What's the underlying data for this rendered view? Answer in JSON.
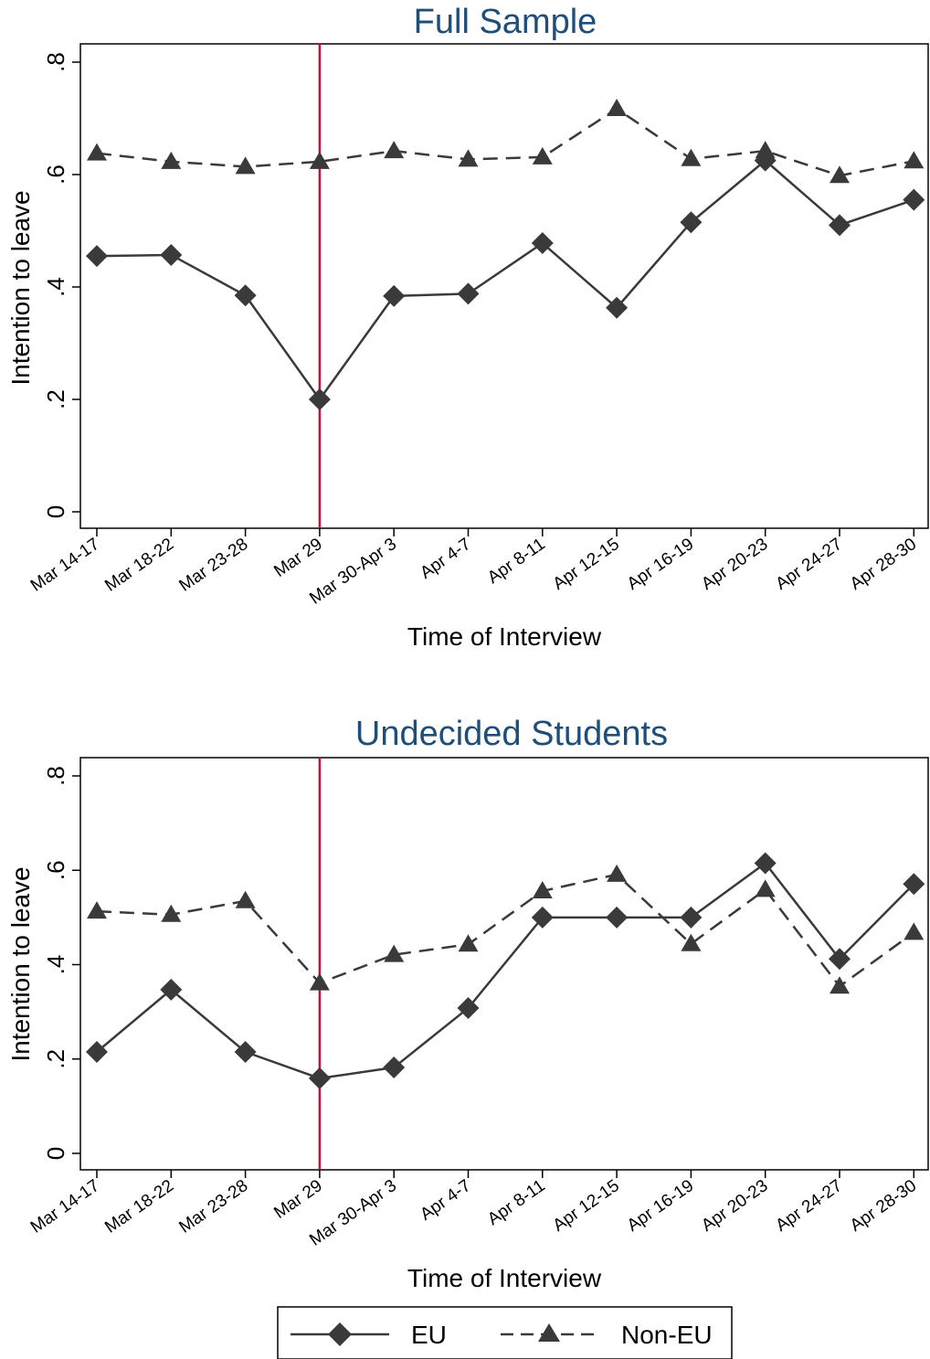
{
  "chart_data": [
    {
      "type": "line",
      "title": "Full Sample",
      "xlabel": "Time of Interview",
      "ylabel": "Intention to leave",
      "ylim": [
        0,
        0.8
      ],
      "yticks": [
        {
          "value": 0,
          "label": "0"
        },
        {
          "value": 0.2,
          "label": ".2"
        },
        {
          "value": 0.4,
          "label": ".4"
        },
        {
          "value": 0.6,
          "label": ".6"
        },
        {
          "value": 0.8,
          "label": ".8"
        }
      ],
      "categories": [
        "Mar 14-17",
        "Mar 18-22",
        "Mar 23-28",
        "Mar 29",
        "Mar 30-Apr 3",
        "Apr 4-7",
        "Apr 8-11",
        "Apr 12-15",
        "Apr 16-19",
        "Apr 20-23",
        "Apr 24-27",
        "Apr 28-30"
      ],
      "reference_line": {
        "category": "Mar 29",
        "color": "#c0143c"
      },
      "grid": false,
      "series": [
        {
          "name": "EU",
          "style": "solid",
          "marker": "diamond",
          "values": [
            0.455,
            0.457,
            0.385,
            0.2,
            0.384,
            0.388,
            0.478,
            0.363,
            0.515,
            0.625,
            0.51,
            0.555
          ]
        },
        {
          "name": "Non-EU",
          "style": "dashed",
          "marker": "triangle",
          "values": [
            0.638,
            0.623,
            0.614,
            0.623,
            0.642,
            0.627,
            0.631,
            0.717,
            0.628,
            0.642,
            0.598,
            0.624
          ]
        }
      ]
    },
    {
      "type": "line",
      "title": "Undecided Students",
      "xlabel": "Time of Interview",
      "ylabel": "Intention to leave",
      "ylim": [
        0,
        0.8
      ],
      "yticks": [
        {
          "value": 0,
          "label": "0"
        },
        {
          "value": 0.2,
          "label": ".2"
        },
        {
          "value": 0.4,
          "label": ".4"
        },
        {
          "value": 0.6,
          "label": ".6"
        },
        {
          "value": 0.8,
          "label": ".8"
        }
      ],
      "categories": [
        "Mar 14-17",
        "Mar 18-22",
        "Mar 23-28",
        "Mar 29",
        "Mar 30-Apr 3",
        "Apr 4-7",
        "Apr 8-11",
        "Apr 12-15",
        "Apr 16-19",
        "Apr 20-23",
        "Apr 24-27",
        "Apr 28-30"
      ],
      "reference_line": {
        "category": "Mar 29",
        "color": "#c0143c"
      },
      "grid": false,
      "series": [
        {
          "name": "EU",
          "style": "solid",
          "marker": "diamond",
          "values": [
            0.215,
            0.347,
            0.215,
            0.159,
            0.182,
            0.308,
            0.5,
            0.5,
            0.5,
            0.615,
            0.412,
            0.571
          ]
        },
        {
          "name": "Non-EU",
          "style": "dashed",
          "marker": "triangle",
          "values": [
            0.513,
            0.506,
            0.535,
            0.361,
            0.421,
            0.443,
            0.556,
            0.591,
            0.444,
            0.559,
            0.354,
            0.468
          ]
        }
      ]
    }
  ],
  "legend": {
    "placement": "bottom",
    "items": [
      {
        "label": "EU",
        "style": "solid",
        "marker": "diamond"
      },
      {
        "label": "Non-EU",
        "style": "dashed",
        "marker": "triangle"
      }
    ]
  },
  "colors": {
    "series": "#3a3a3a",
    "reference_line": "#c0143c",
    "title": "#1f4e79",
    "axis": "#000000"
  }
}
